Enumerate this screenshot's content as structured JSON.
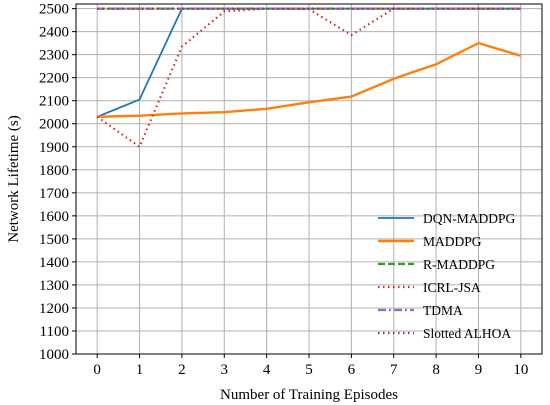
{
  "chart_data": {
    "type": "line",
    "xlabel": "Number of Training Episodes",
    "ylabel": "Network Lifetime (s)",
    "xlim": [
      -0.5,
      10.5
    ],
    "ylim": [
      1000,
      2520
    ],
    "xticks": [
      0,
      1,
      2,
      3,
      4,
      5,
      6,
      7,
      8,
      9,
      10
    ],
    "yticks": [
      1000,
      1100,
      1200,
      1300,
      1400,
      1500,
      1600,
      1700,
      1800,
      1900,
      2000,
      2100,
      2200,
      2300,
      2400,
      2500
    ],
    "grid": true,
    "legend_position": "bottom-right",
    "series": [
      {
        "name": "DQN-MADDPG",
        "color": "#1f77b4",
        "style": "solid",
        "width": 1.8,
        "x": [
          0,
          1,
          2,
          3,
          4,
          5,
          6,
          7,
          8,
          9,
          10
        ],
        "values": [
          2030,
          2105,
          2500,
          2500,
          2500,
          2500,
          2500,
          2500,
          2500,
          2500,
          2500
        ]
      },
      {
        "name": "MADDPG",
        "color": "#ff7f0e",
        "style": "solid",
        "width": 2.4,
        "x": [
          0,
          1,
          2,
          3,
          4,
          5,
          6,
          7,
          8,
          9,
          10
        ],
        "values": [
          2030,
          2035,
          2045,
          2050,
          2065,
          2093,
          2118,
          2195,
          2258,
          2350,
          2295
        ]
      },
      {
        "name": "R-MADDPG",
        "color": "#2ca02c",
        "style": "dashed",
        "width": 2.2,
        "x": [
          0,
          1,
          2,
          3,
          4,
          5,
          6,
          7,
          8,
          9,
          10
        ],
        "values": [
          2500,
          2500,
          2500,
          2500,
          2500,
          2500,
          2500,
          2500,
          2500,
          2500,
          2500
        ]
      },
      {
        "name": "ICRL-JSA",
        "color": "#d62728",
        "style": "dotted",
        "width": 2.2,
        "x": [
          0,
          1,
          2,
          3,
          4,
          5,
          6,
          7,
          8,
          9,
          10
        ],
        "values": [
          2030,
          1900,
          2335,
          2488,
          2500,
          2498,
          2385,
          2500,
          2500,
          2500,
          2500
        ]
      },
      {
        "name": "TDMA",
        "color": "#9467bd",
        "style": "dashdot",
        "width": 2.2,
        "x": [
          0,
          1,
          2,
          3,
          4,
          5,
          6,
          7,
          8,
          9,
          10
        ],
        "values": [
          2500,
          2500,
          2500,
          2500,
          2500,
          2500,
          2500,
          2500,
          2500,
          2500,
          2500
        ]
      },
      {
        "name": "Slotted ALHOA",
        "color": "#8c3a3a",
        "style": "dotted",
        "width": 2.2,
        "x": [
          0,
          1,
          2,
          3,
          4,
          5,
          6,
          7,
          8,
          9,
          10
        ],
        "values": [
          2500,
          2500,
          2500,
          2500,
          2500,
          2500,
          2500,
          2500,
          2500,
          2500,
          2500
        ]
      }
    ]
  }
}
